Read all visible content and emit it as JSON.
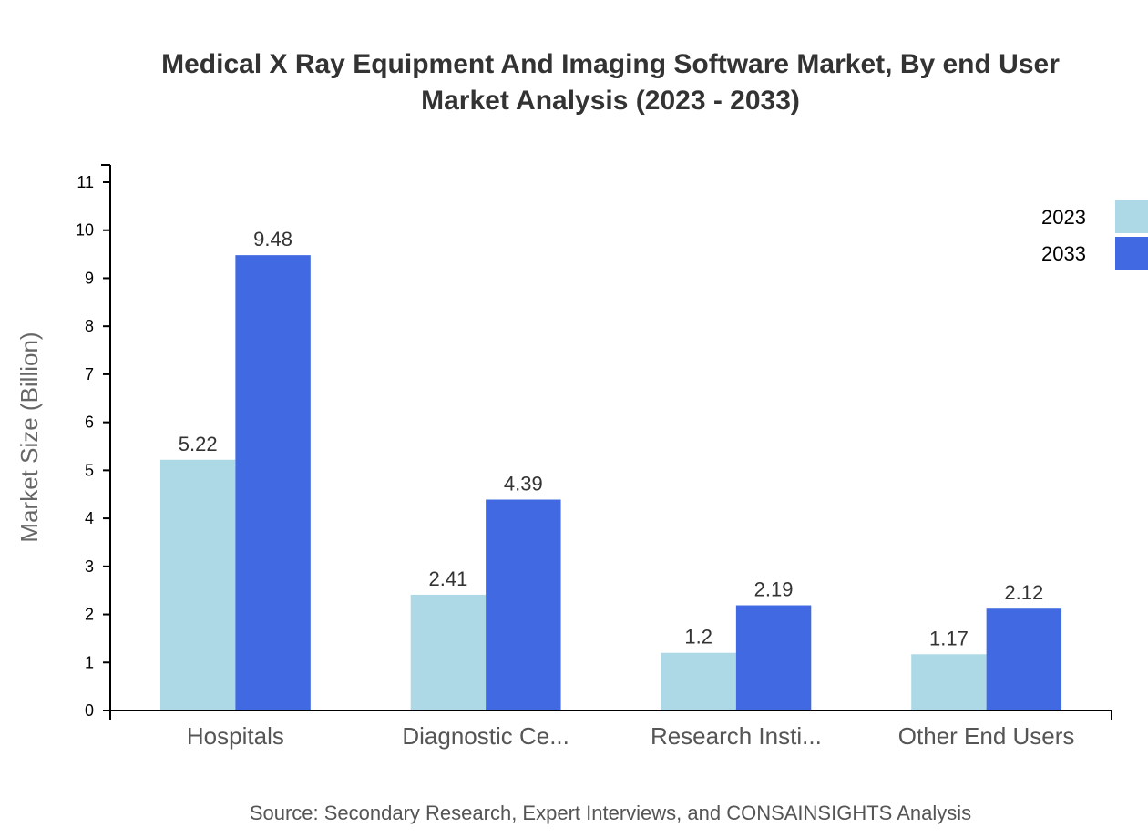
{
  "chart_data": {
    "type": "bar",
    "title": "Medical X Ray Equipment And Imaging Software Market, By end User",
    "subtitle": "Market Analysis (2023 - 2033)",
    "xlabel": "",
    "ylabel": "Market Size (Billion)",
    "ylim": [
      0,
      11
    ],
    "yticks": [
      0,
      1,
      2,
      3,
      4,
      5,
      6,
      7,
      8,
      9,
      10,
      11
    ],
    "categories": [
      "Hospitals",
      "Diagnostic Ce...",
      "Research Insti...",
      "Other End Users"
    ],
    "series": [
      {
        "name": "2023",
        "color": "#add8e6",
        "values": [
          5.22,
          2.41,
          1.2,
          1.17
        ]
      },
      {
        "name": "2033",
        "color": "#4169e1",
        "values": [
          9.48,
          4.39,
          2.19,
          2.12
        ]
      }
    ],
    "grid": false,
    "legend_position": "top-right",
    "source": "Source: Secondary Research, Expert Interviews, and CONSAINSIGHTS Analysis"
  }
}
